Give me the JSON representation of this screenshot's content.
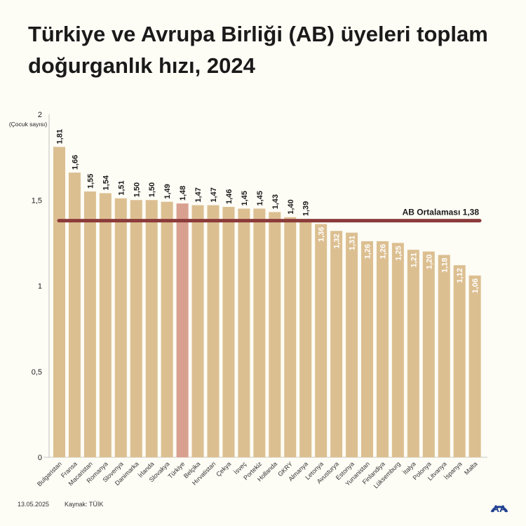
{
  "title": "Türkiye ve Avrupa Birliği (AB) üyeleri toplam doğurganlık hızı, 2024",
  "footer": {
    "date": "13.05.2025",
    "source": "Kaynak: TÜİK",
    "logo": "AA"
  },
  "colors": {
    "bar": "#dcbf91",
    "highlight": "#d9a090",
    "average": "#8c3b3b",
    "label_dark": "#1a1a1a",
    "label_light": "#ffffff"
  },
  "chart_data": {
    "type": "bar",
    "ylabel": "(Çocuk sayısı)",
    "ylim": [
      0,
      2
    ],
    "yticks": [
      0,
      0.5,
      1,
      1.5,
      2
    ],
    "ytick_labels": [
      "0",
      "0,5",
      "1",
      "1,5",
      "2"
    ],
    "categories": [
      "Bulgaristan",
      "Fransa",
      "Macaristan",
      "Romanya",
      "Slovenya",
      "Danimarka",
      "İrlanda",
      "Slovakya",
      "Türkiye",
      "Belçika",
      "Hırvatistan",
      "Çekya",
      "İsveç",
      "Portekiz",
      "Hollanda",
      "GKRY",
      "Almanya",
      "Letonya",
      "Avusturya",
      "Estonya",
      "Yunanistan",
      "Finlandiya",
      "Lüksemburg",
      "İtalya",
      "Polonya",
      "Litvanya",
      "İspanya",
      "Malta"
    ],
    "values": [
      1.81,
      1.66,
      1.55,
      1.54,
      1.51,
      1.5,
      1.5,
      1.49,
      1.48,
      1.47,
      1.47,
      1.46,
      1.45,
      1.45,
      1.43,
      1.4,
      1.39,
      1.36,
      1.32,
      1.31,
      1.26,
      1.26,
      1.25,
      1.21,
      1.2,
      1.18,
      1.12,
      1.06
    ],
    "value_labels": [
      "1,81",
      "1,66",
      "1,55",
      "1,54",
      "1,51",
      "1,50",
      "1,50",
      "1,49",
      "1,48",
      "1,47",
      "1,47",
      "1,46",
      "1,45",
      "1,45",
      "1,43",
      "1,40",
      "1,39",
      "1,36",
      "1,32",
      "1,31",
      "1,26",
      "1,26",
      "1,25",
      "1,21",
      "1,20",
      "1,18",
      "1,12",
      "1,06"
    ],
    "highlight": "Türkiye",
    "average": {
      "value": 1.38,
      "label": "AB Ortalaması 1,38"
    },
    "grid": false
  }
}
